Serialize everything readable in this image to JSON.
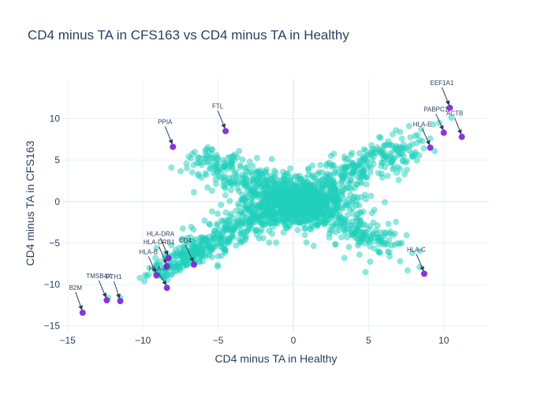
{
  "chart_data": {
    "type": "scatter",
    "title": "CD4 minus TA in CFS163 vs CD4 minus TA in Healthy",
    "xlabel": "CD4 minus TA in Healthy",
    "ylabel": "CD4 minus TA in CFS163",
    "xlim": [
      -15.3,
      13.0
    ],
    "ylim": [
      -15.6,
      14.8
    ],
    "xticks": [
      -15,
      -10,
      -5,
      0,
      5,
      10
    ],
    "yticks": [
      -15,
      -10,
      -5,
      0,
      5,
      10
    ],
    "xtick_labels": [
      "−15",
      "−10",
      "−5",
      "0",
      "5",
      "10"
    ],
    "ytick_labels": [
      "−15",
      "−10",
      "−5",
      "0",
      "5",
      "10"
    ],
    "grid": true,
    "colors": {
      "background": "#ffffff",
      "grid": "#ebf0f8",
      "zeroline": "#ebf0f8",
      "bulk_points": "#1fcfbc",
      "highlight_points": "#7f1fd6",
      "text": "#2a3f5f",
      "arrow": "#2a3f5f"
    },
    "bulk_point_outliers": [
      [
        -8.4,
        -8.9
      ],
      [
        -8.6,
        -9.2
      ],
      [
        -9.2,
        -8.4
      ],
      [
        -9.6,
        -8.8
      ],
      [
        -9.9,
        -9.6
      ],
      [
        -10.2,
        -9.2
      ],
      [
        -11.5,
        -11.6
      ],
      [
        -12.3,
        -11.6
      ],
      [
        -8.9,
        -7.2
      ],
      [
        -7.9,
        -8.4
      ],
      [
        -7.6,
        -7.8
      ],
      [
        -7.3,
        -7.1
      ],
      [
        -6.6,
        -7.3
      ],
      [
        -6.2,
        -6.1
      ],
      [
        -5.4,
        -6.7
      ],
      [
        -5.0,
        -6.6
      ],
      [
        -4.7,
        -5.6
      ],
      [
        -7.5,
        -6.1
      ],
      [
        -6.3,
        -5.5
      ],
      [
        -8.1,
        4.1
      ],
      [
        -7.1,
        4.6
      ],
      [
        -6.8,
        5.2
      ],
      [
        -5.8,
        6.3
      ],
      [
        -5.4,
        6.3
      ],
      [
        -5.1,
        5.6
      ],
      [
        -4.7,
        4.2
      ],
      [
        -6.1,
        2.9
      ],
      [
        -5.3,
        3.4
      ],
      [
        -4.5,
        2.6
      ],
      [
        -3.9,
        5.0
      ],
      [
        -2.9,
        4.8
      ],
      [
        -5.7,
        1.7
      ],
      [
        -5.4,
        1.3
      ],
      [
        -5.4,
        -1.2
      ],
      [
        -4.8,
        -0.4
      ],
      [
        -5.9,
        -2.3
      ],
      [
        -3.6,
        6.1
      ],
      [
        4.8,
        -8.5
      ],
      [
        5.7,
        -6.1
      ],
      [
        6.4,
        -6.6
      ],
      [
        7.1,
        -7.2
      ],
      [
        7.6,
        -8.3
      ],
      [
        7.9,
        -6.2
      ],
      [
        8.4,
        -7.9
      ],
      [
        5.1,
        -5.4
      ],
      [
        3.7,
        -5.5
      ],
      [
        4.4,
        -6.4
      ],
      [
        3.4,
        -6.8
      ],
      [
        6.0,
        -5.0
      ],
      [
        7.2,
        -5.0
      ],
      [
        2.8,
        -5.2
      ],
      [
        5.8,
        7.7
      ],
      [
        6.6,
        8.1
      ],
      [
        7.1,
        8.4
      ],
      [
        7.7,
        9.1
      ],
      [
        8.5,
        8.7
      ],
      [
        9.3,
        9.3
      ],
      [
        9.7,
        9.5
      ],
      [
        10.5,
        10.1
      ],
      [
        6.9,
        6.2
      ],
      [
        8.4,
        7.4
      ],
      [
        7.9,
        6.9
      ],
      [
        9.1,
        7.6
      ],
      [
        8.1,
        5.7
      ],
      [
        7.1,
        3.9
      ],
      [
        7.4,
        3.3
      ],
      [
        7.0,
        2.6
      ],
      [
        7.2,
        6.5
      ],
      [
        6.0,
        5.6
      ],
      [
        4.7,
        6.3
      ],
      [
        5.2,
        6.8
      ],
      [
        3.2,
        -4.3
      ],
      [
        -2.0,
        -4.4
      ],
      [
        -3.2,
        -4.6
      ],
      [
        1.8,
        4.4
      ],
      [
        2.5,
        5.5
      ]
    ],
    "highlighted": [
      {
        "label": "EEF1A1",
        "x": 10.4,
        "y": 11.3,
        "label_offset": [
          -10,
          -29
        ]
      },
      {
        "label": "PABPC1",
        "x": 10.0,
        "y": 8.3,
        "label_offset": [
          -10,
          -27
        ]
      },
      {
        "label": "ACTB",
        "x": 11.2,
        "y": 7.8,
        "label_offset": [
          -9,
          -27
        ]
      },
      {
        "label": "HLA-E",
        "x": 9.1,
        "y": 6.5,
        "label_offset": [
          -10,
          -27
        ]
      },
      {
        "label": "FTL",
        "x": -4.5,
        "y": 8.5,
        "label_offset": [
          -10,
          -29
        ]
      },
      {
        "label": "PPIA",
        "x": -8.0,
        "y": 6.6,
        "label_offset": [
          -10,
          -29
        ]
      },
      {
        "label": "HLA-C",
        "x": 8.7,
        "y": -8.7,
        "label_offset": [
          -10,
          -28
        ]
      },
      {
        "label": "CD4",
        "x": -6.6,
        "y": -7.6,
        "label_offset": [
          -11,
          -28
        ]
      },
      {
        "label": "HLA-DRA",
        "x": -8.3,
        "y": -6.8,
        "label_offset": [
          -10,
          -28
        ]
      },
      {
        "label": "HLA-DRB1",
        "x": -8.4,
        "y": -7.8,
        "label_offset": [
          -10,
          -28
        ]
      },
      {
        "label": "HLA-B",
        "x": -9.1,
        "y": -8.9,
        "label_offset": [
          -10,
          -27
        ]
      },
      {
        "label": "HLA-A",
        "x": -8.4,
        "y": -10.4,
        "label_offset": [
          -11,
          -22
        ]
      },
      {
        "label": "TMSB4X",
        "x": -12.4,
        "y": -11.9,
        "label_offset": [
          -10,
          -28
        ]
      },
      {
        "label": "FTH1",
        "x": -11.5,
        "y": -12.0,
        "label_offset": [
          -8,
          -28
        ]
      },
      {
        "label": "B2M",
        "x": -14.0,
        "y": -13.4,
        "label_offset": [
          -9,
          -29
        ]
      }
    ]
  }
}
